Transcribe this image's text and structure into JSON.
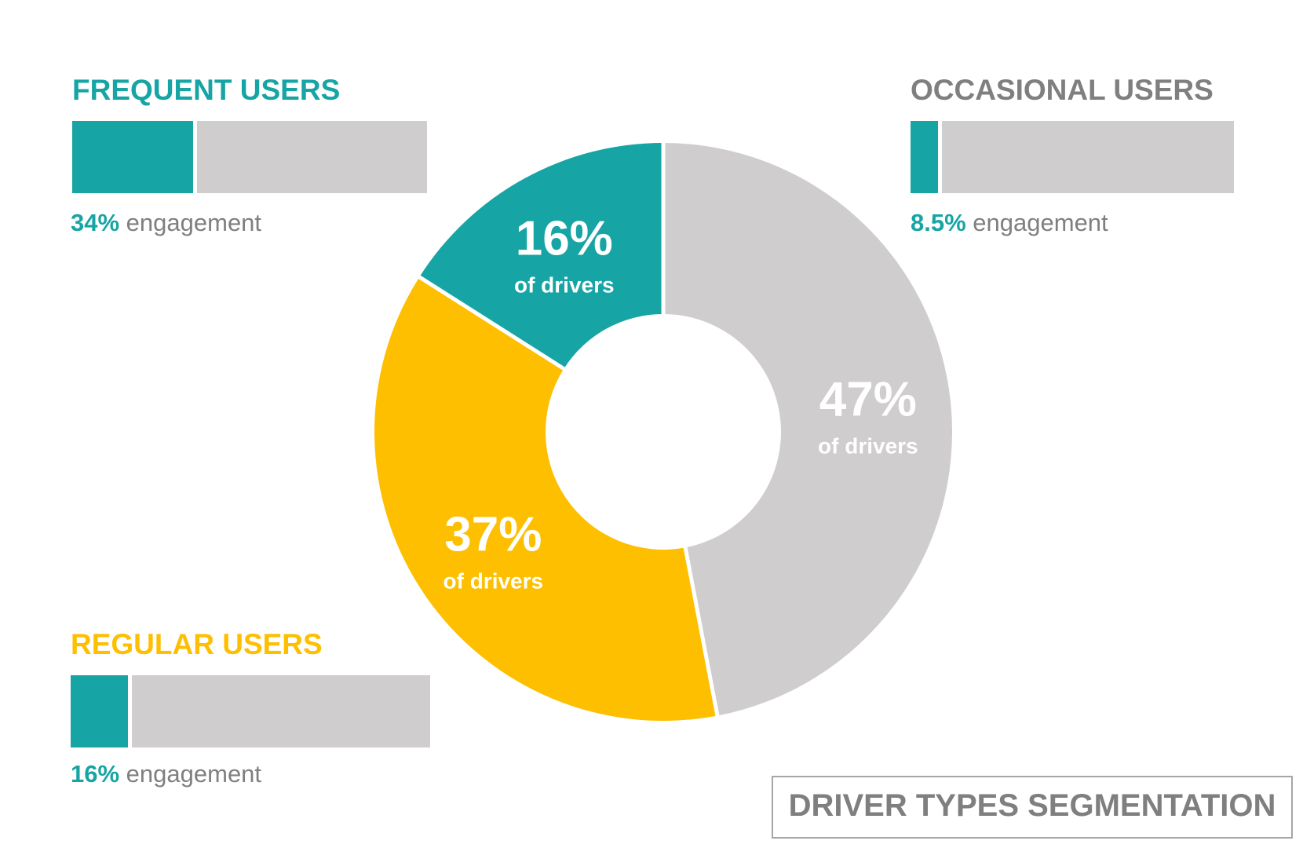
{
  "chart_data": {
    "type": "pie",
    "subtype": "donut",
    "title": "DRIVER TYPES SEGMENTATION",
    "slices": [
      {
        "label": "Occasional users",
        "value": 47,
        "value_label": "47%",
        "sub_label": "of drivers",
        "color": "#cfcdce"
      },
      {
        "label": "Regular users",
        "value": 37,
        "value_label": "37%",
        "sub_label": "of drivers",
        "color": "#fdbf00"
      },
      {
        "label": "Frequent users",
        "value": 16,
        "value_label": "16%",
        "sub_label": "of drivers",
        "color": "#17a4a4"
      }
    ],
    "engagement_bars": [
      {
        "title": "FREQUENT USERS",
        "title_color": "#17a4a4",
        "value": 34,
        "value_label": "34%",
        "suffix": "engagement"
      },
      {
        "title": "OCCASIONAL USERS",
        "title_color": "#7f7f7f",
        "value": 8.5,
        "value_label": "8.5%",
        "suffix": "engagement"
      },
      {
        "title": "REGULAR USERS",
        "title_color": "#fdbf00",
        "value": 16,
        "value_label": "16%",
        "suffix": "engagement"
      }
    ],
    "bar_fill_color": "#17a4a4",
    "bar_track_color": "#cfcdce"
  }
}
